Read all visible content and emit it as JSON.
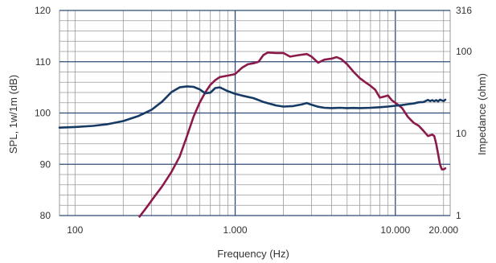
{
  "chart_data": {
    "type": "line",
    "xlabel": "Frequency (Hz)",
    "ylabel": "SPL, 1w/1m (dB)",
    "y2label": "Impedance (ohm)",
    "x_scale": "log",
    "xlim": [
      80,
      22000
    ],
    "ylim": [
      80,
      120
    ],
    "y2lim": [
      1,
      316
    ],
    "y2_scale": "log",
    "x_tick_labels": [
      {
        "value": 100,
        "label": "100"
      },
      {
        "value": 1000,
        "label": "1.000"
      },
      {
        "value": 10000,
        "label": "10.000"
      },
      {
        "value": 20000,
        "label": "20.000"
      }
    ],
    "y_tick_labels": [
      {
        "value": 80,
        "label": "80"
      },
      {
        "value": 90,
        "label": "90"
      },
      {
        "value": 100,
        "label": "100"
      },
      {
        "value": 110,
        "label": "110"
      },
      {
        "value": 120,
        "label": "120"
      }
    ],
    "y2_tick_labels": [
      {
        "value": 1,
        "label": "1"
      },
      {
        "value": 10,
        "label": "10"
      },
      {
        "value": 100,
        "label": "100"
      },
      {
        "value": 316,
        "label": "316"
      }
    ],
    "grid": true,
    "colors": {
      "spl": "#8b1a4a",
      "impedance": "#173a64",
      "grid_minor": "#9a9a9a",
      "grid_major": "#2f4c78"
    },
    "series": [
      {
        "key": "spl",
        "axis": "left",
        "x": [
          253,
          280,
          310,
          350,
          400,
          450,
          500,
          550,
          600,
          650,
          700,
          750,
          800,
          900,
          1000,
          1100,
          1200,
          1300,
          1400,
          1500,
          1600,
          1800,
          2000,
          2200,
          2500,
          2800,
          3000,
          3300,
          3600,
          4000,
          4300,
          4600,
          5000,
          5500,
          6000,
          6500,
          7000,
          7500,
          8000,
          8500,
          9000,
          9500,
          10000,
          11000,
          12000,
          13000,
          14000,
          15000,
          16000,
          17000,
          17500,
          18000,
          18500,
          19000,
          19500,
          20000,
          20500
        ],
        "values": [
          79.8,
          81.6,
          83.5,
          85.7,
          88.5,
          91.5,
          95.5,
          99.3,
          102.0,
          104.0,
          105.5,
          106.4,
          107.0,
          107.3,
          107.6,
          108.8,
          109.5,
          109.7,
          110.0,
          111.3,
          111.8,
          111.7,
          111.7,
          111.0,
          111.3,
          111.5,
          111.0,
          109.8,
          110.4,
          110.6,
          110.9,
          110.5,
          109.5,
          108.0,
          106.8,
          106.0,
          105.3,
          104.5,
          103.0,
          103.2,
          103.4,
          102.5,
          102.0,
          101.0,
          99.2,
          98.1,
          97.5,
          96.5,
          95.5,
          95.8,
          95.5,
          94.0,
          92.0,
          90.0,
          89.0,
          89.0,
          89.2
        ]
      },
      {
        "key": "impedance",
        "axis": "right",
        "x": [
          80,
          100,
          130,
          160,
          200,
          250,
          300,
          350,
          400,
          450,
          500,
          550,
          600,
          650,
          700,
          750,
          800,
          850,
          900,
          1000,
          1100,
          1300,
          1500,
          1800,
          2000,
          2300,
          2600,
          2800,
          3000,
          3300,
          3600,
          4000,
          4500,
          5000,
          5500,
          6000,
          7000,
          8000,
          9000,
          10000,
          11000,
          12000,
          13000,
          14000,
          15000,
          16000,
          16500,
          17000,
          17500,
          18000,
          18500,
          19000,
          20000,
          20500
        ],
        "values": [
          11.8,
          12.0,
          12.4,
          13.0,
          14.2,
          16.4,
          19.4,
          24.5,
          32.0,
          36.5,
          37.5,
          37.0,
          34.5,
          31.0,
          31.5,
          35.8,
          36.5,
          34.6,
          32.8,
          30.5,
          29.0,
          27.0,
          24.3,
          22.0,
          21.3,
          21.6,
          22.6,
          23.5,
          22.4,
          21.2,
          20.6,
          20.4,
          20.6,
          20.4,
          20.5,
          20.4,
          20.6,
          20.9,
          21.3,
          21.8,
          22.2,
          22.8,
          23.2,
          24.0,
          24.2,
          25.7,
          24.8,
          25.5,
          24.7,
          25.5,
          24.6,
          25.8,
          24.8,
          25.8
        ]
      }
    ]
  }
}
